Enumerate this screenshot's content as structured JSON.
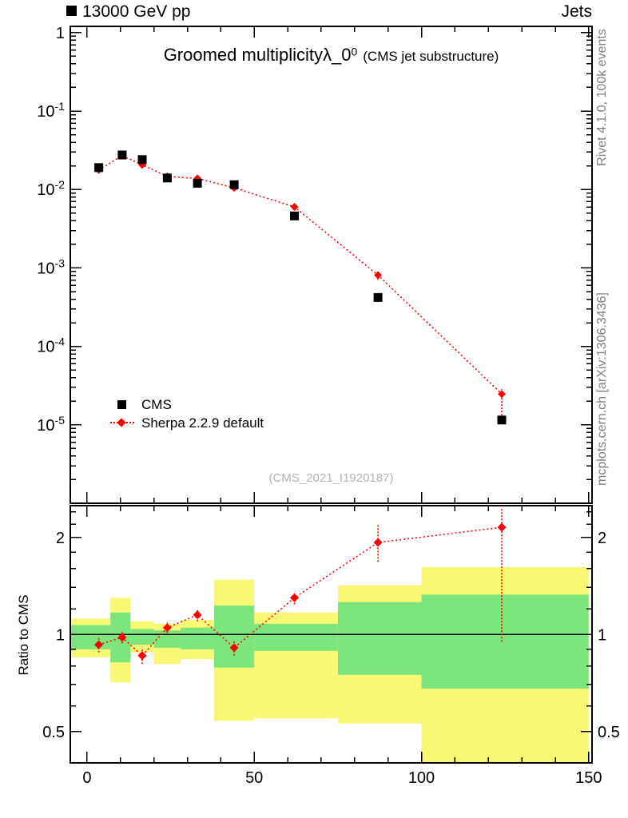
{
  "header": {
    "left": "13000 GeV pp",
    "right": "Jets"
  },
  "titles": {
    "prefix": "Groomed multiplicity",
    "symbol": "λ_0",
    "superscript": "0",
    "suffix": "(CMS jet substructure)"
  },
  "watermark": "(CMS_2021_I1920187)",
  "side_labels": {
    "top": "Rivet 4.1.0, 100k events",
    "bottom": "mcplots.cern.ch [arXiv:1306.3436]"
  },
  "legend": [
    {
      "label": "CMS",
      "marker": "black-square"
    },
    {
      "label": "Sherpa 2.2.9 default",
      "marker": "red-diamond-dotted-line"
    }
  ],
  "ratio_ylabel": "Ratio to CMS",
  "colors": {
    "cms": "#000000",
    "sherpa": "#ff0000",
    "band_yellow": "#f8f875",
    "band_green": "#7ce67c",
    "side_text": "#808080",
    "watermark": "#b4b4b4"
  },
  "chart_data": {
    "type": "line",
    "title": "Groomed multiplicity λ_0^0 (CMS jet substructure)",
    "xlabel": "",
    "ylabel": "",
    "x": [
      3.5,
      10.5,
      16.5,
      24,
      33,
      44,
      62,
      87,
      124
    ],
    "bin_edges": [
      0,
      7,
      13,
      20,
      28,
      38,
      50,
      75,
      100,
      150
    ],
    "series": [
      {
        "name": "CMS",
        "marker": "square",
        "color": "#000000",
        "values": [
          0.019,
          0.0275,
          0.024,
          0.014,
          0.012,
          0.0115,
          0.0046,
          0.00042,
          1.15e-05
        ]
      },
      {
        "name": "Sherpa 2.2.9 default",
        "marker": "diamond",
        "color": "#ff0000",
        "line": "dotted",
        "values": [
          0.0177,
          0.027,
          0.0206,
          0.0147,
          0.0138,
          0.0105,
          0.006,
          0.00081,
          2.47e-05
        ]
      }
    ],
    "main_axis": {
      "ylog": true,
      "ylim": [
        1e-06,
        1.2
      ],
      "xlim": [
        -5,
        151
      ],
      "xticks": [
        0,
        50,
        100,
        150
      ],
      "xminor_step": 10,
      "ytick_exponents": [
        0,
        -1,
        -2,
        -3,
        -4,
        -5
      ]
    },
    "ratio": {
      "ylog": true,
      "ylim": [
        0.4,
        2.51
      ],
      "yticks": [
        0.5,
        1,
        2
      ],
      "values": [
        0.93,
        0.98,
        0.86,
        1.05,
        1.15,
        0.91,
        1.3,
        1.93,
        2.15
      ],
      "err_lo": [
        0.05,
        0.04,
        0.05,
        0.04,
        0.05,
        0.05,
        0.06,
        0.25,
        1.2
      ],
      "err_hi": [
        0.05,
        0.04,
        0.05,
        0.04,
        0.05,
        0.05,
        0.06,
        0.28,
        0.33
      ],
      "bands": [
        {
          "x0": 0,
          "x1": 7,
          "yellow": [
            0.85,
            1.12
          ],
          "green": [
            0.9,
            1.07
          ]
        },
        {
          "x0": 7,
          "x1": 13,
          "yellow": [
            0.71,
            1.3
          ],
          "green": [
            0.82,
            1.17
          ]
        },
        {
          "x0": 13,
          "x1": 20,
          "yellow": [
            0.88,
            1.1
          ],
          "green": [
            0.93,
            1.04
          ]
        },
        {
          "x0": 20,
          "x1": 28,
          "yellow": [
            0.81,
            1.08
          ],
          "green": [
            0.91,
            1.03
          ]
        },
        {
          "x0": 28,
          "x1": 38,
          "yellow": [
            0.84,
            1.11
          ],
          "green": [
            0.9,
            1.05
          ]
        },
        {
          "x0": 38,
          "x1": 50,
          "yellow": [
            0.54,
            1.48
          ],
          "green": [
            0.79,
            1.23
          ]
        },
        {
          "x0": 50,
          "x1": 75,
          "yellow": [
            0.55,
            1.17
          ],
          "green": [
            0.89,
            1.08
          ]
        },
        {
          "x0": 75,
          "x1": 100,
          "yellow": [
            0.53,
            1.42
          ],
          "green": [
            0.75,
            1.26
          ]
        },
        {
          "x0": 100,
          "x1": 150,
          "yellow": [
            0.4,
            1.62
          ],
          "green": [
            0.68,
            1.33
          ]
        }
      ]
    }
  }
}
